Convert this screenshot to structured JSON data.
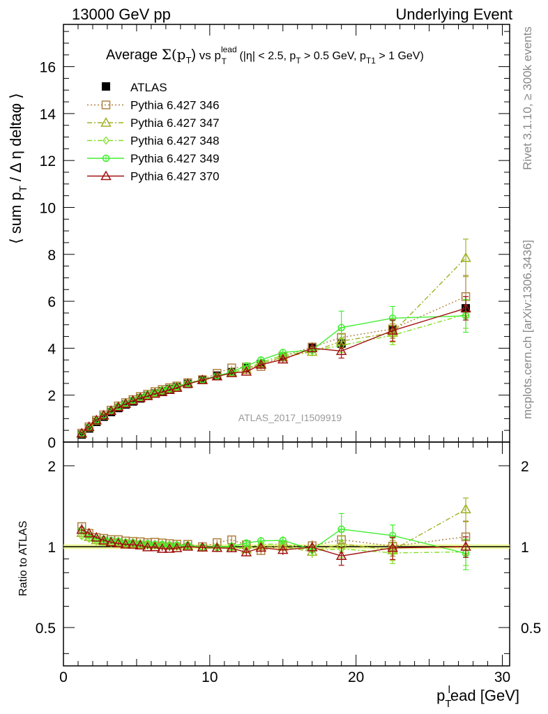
{
  "header": {
    "left": "13000 GeV pp",
    "right": "Underlying Event"
  },
  "side": {
    "rivet": "Rivet 3.1.10, ≥ 300k events",
    "mcplots": "mcplots.cern.ch [arXiv:1306.3436]"
  },
  "watermark": "ATLAS_2017_I1509919",
  "chart_data": {
    "type": "scatter",
    "title": "Average Σ(p_T) vs p_T^lead (|η| < 2.5, p_T > 0.5 GeV, p_T1 > 1 GeV)",
    "title_parts": {
      "prefix": "Average ",
      "sigma": "Σ(p",
      "sub_T": "T",
      "paren": ")",
      "vs": " vs p",
      "sup_lead": "lead",
      "sub_T2": "T",
      "cut1": " (|η| < 2.5, p",
      "sub_T3": "T",
      "cut2": " > 0.5 GeV, p",
      "sub_T1": "T1",
      "cut3": " > 1 GeV)"
    },
    "xlabel": "p_T^lead [GeV]",
    "xlabel_parts": {
      "p": "p",
      "sub": "T",
      "sup": "l",
      "rest": "ead [GeV]"
    },
    "ylabel": "⟨ sum p_T / Δη deltaφ ⟩",
    "ylabel_parts": {
      "a": "⟨ sum p",
      "sub": "T",
      "b": " / Δ η deltaφ ⟩"
    },
    "ratio_ylabel": "Ratio to ATLAS",
    "xlim": [
      0,
      30.5
    ],
    "ylim": [
      0,
      17.8
    ],
    "ratio_ylim": [
      0.36,
      2.45
    ],
    "x_ticks": [
      0,
      10,
      20,
      30
    ],
    "x_tick_labels": [
      "0",
      "10",
      "20",
      "30"
    ],
    "y_ticks": [
      0,
      2,
      4,
      6,
      8,
      10,
      12,
      14,
      16
    ],
    "y_tick_labels": [
      "0",
      "2",
      "4",
      "6",
      "8",
      "10",
      "12",
      "14",
      "16"
    ],
    "ratio_ticks": [
      0.5,
      1,
      2
    ],
    "ratio_tick_labels": [
      "0.5",
      "1",
      "2"
    ],
    "legend_position": "top-left",
    "x": [
      1.25,
      1.75,
      2.25,
      2.75,
      3.25,
      3.75,
      4.25,
      4.75,
      5.25,
      5.75,
      6.25,
      6.75,
      7.25,
      7.75,
      8.5,
      9.5,
      10.5,
      11.5,
      12.5,
      13.5,
      15.0,
      17.0,
      19.0,
      22.5,
      27.5
    ],
    "reference": {
      "name": "ATLAS",
      "color": "#000000",
      "values": [
        0.32,
        0.58,
        0.86,
        1.08,
        1.28,
        1.45,
        1.6,
        1.73,
        1.86,
        1.97,
        2.07,
        2.17,
        2.26,
        2.34,
        2.48,
        2.66,
        2.83,
        2.98,
        3.15,
        3.33,
        3.62,
        4.02,
        4.2,
        4.8,
        5.7
      ],
      "errors": [
        0.02,
        0.02,
        0.02,
        0.03,
        0.03,
        0.03,
        0.03,
        0.03,
        0.04,
        0.04,
        0.04,
        0.05,
        0.05,
        0.05,
        0.05,
        0.06,
        0.07,
        0.08,
        0.09,
        0.1,
        0.12,
        0.16,
        0.2,
        0.3,
        0.4
      ]
    },
    "series": [
      {
        "name": "Pythia 6.427 346",
        "color": "#b08040",
        "dash": "2,3",
        "marker": "square",
        "values": [
          0.38,
          0.65,
          0.93,
          1.16,
          1.36,
          1.54,
          1.68,
          1.81,
          1.94,
          2.04,
          2.15,
          2.24,
          2.32,
          2.39,
          2.53,
          2.66,
          2.93,
          3.16,
          3.2,
          3.22,
          3.66,
          4.05,
          4.46,
          4.82,
          6.2
        ],
        "errors": [
          0.01,
          0.01,
          0.01,
          0.02,
          0.02,
          0.02,
          0.02,
          0.03,
          0.03,
          0.03,
          0.03,
          0.04,
          0.04,
          0.04,
          0.05,
          0.06,
          0.07,
          0.09,
          0.1,
          0.12,
          0.15,
          0.2,
          0.3,
          0.4,
          0.9
        ]
      },
      {
        "name": "Pythia 6.427 347",
        "color": "#a0b020",
        "dash": "7,3,2,3",
        "marker": "triangle",
        "values": [
          0.36,
          0.63,
          0.91,
          1.13,
          1.33,
          1.51,
          1.65,
          1.78,
          1.9,
          2.01,
          2.1,
          2.2,
          2.28,
          2.36,
          2.5,
          2.64,
          2.8,
          2.98,
          3.08,
          3.35,
          3.62,
          3.85,
          4.3,
          4.66,
          7.85
        ],
        "errors": [
          0.01,
          0.01,
          0.01,
          0.02,
          0.02,
          0.02,
          0.02,
          0.03,
          0.03,
          0.03,
          0.03,
          0.04,
          0.04,
          0.04,
          0.05,
          0.06,
          0.07,
          0.09,
          0.1,
          0.12,
          0.15,
          0.2,
          0.3,
          0.4,
          0.8
        ]
      },
      {
        "name": "Pythia 6.427 348",
        "color": "#80e020",
        "dash": "7,3,2,3",
        "marker": "diamond",
        "values": [
          0.35,
          0.62,
          0.9,
          1.12,
          1.32,
          1.5,
          1.64,
          1.76,
          1.88,
          1.99,
          2.09,
          2.18,
          2.26,
          2.34,
          2.49,
          2.63,
          2.79,
          2.96,
          3.12,
          3.4,
          3.7,
          3.88,
          4.12,
          4.55,
          5.45
        ],
        "errors": [
          0.01,
          0.01,
          0.01,
          0.02,
          0.02,
          0.02,
          0.02,
          0.03,
          0.03,
          0.03,
          0.03,
          0.04,
          0.04,
          0.04,
          0.05,
          0.06,
          0.07,
          0.09,
          0.1,
          0.12,
          0.15,
          0.2,
          0.3,
          0.4,
          0.6
        ]
      },
      {
        "name": "Pythia 6.427 349",
        "color": "#40ee30",
        "dash": "",
        "marker": "circle",
        "values": [
          0.37,
          0.64,
          0.92,
          1.15,
          1.35,
          1.52,
          1.66,
          1.79,
          1.91,
          2.02,
          2.11,
          2.21,
          2.29,
          2.37,
          2.51,
          2.65,
          2.82,
          2.99,
          3.25,
          3.5,
          3.82,
          3.92,
          4.88,
          5.28,
          5.38
        ],
        "errors": [
          0.01,
          0.01,
          0.01,
          0.02,
          0.02,
          0.02,
          0.02,
          0.03,
          0.03,
          0.03,
          0.03,
          0.04,
          0.04,
          0.04,
          0.05,
          0.06,
          0.07,
          0.09,
          0.1,
          0.12,
          0.15,
          0.2,
          0.7,
          0.5,
          0.7
        ]
      },
      {
        "name": "Pythia 6.427 370",
        "color": "#a01010",
        "dash": "",
        "marker": "triangle",
        "values": [
          0.37,
          0.65,
          0.93,
          1.14,
          1.33,
          1.49,
          1.63,
          1.76,
          1.88,
          1.96,
          2.06,
          2.13,
          2.22,
          2.31,
          2.48,
          2.64,
          2.8,
          2.94,
          3.0,
          3.3,
          3.52,
          4.0,
          3.88,
          4.75,
          5.7
        ],
        "errors": [
          0.01,
          0.01,
          0.01,
          0.02,
          0.02,
          0.02,
          0.02,
          0.03,
          0.03,
          0.03,
          0.03,
          0.04,
          0.04,
          0.04,
          0.05,
          0.06,
          0.07,
          0.09,
          0.1,
          0.12,
          0.15,
          0.2,
          0.3,
          0.45,
          0.5
        ]
      }
    ]
  }
}
